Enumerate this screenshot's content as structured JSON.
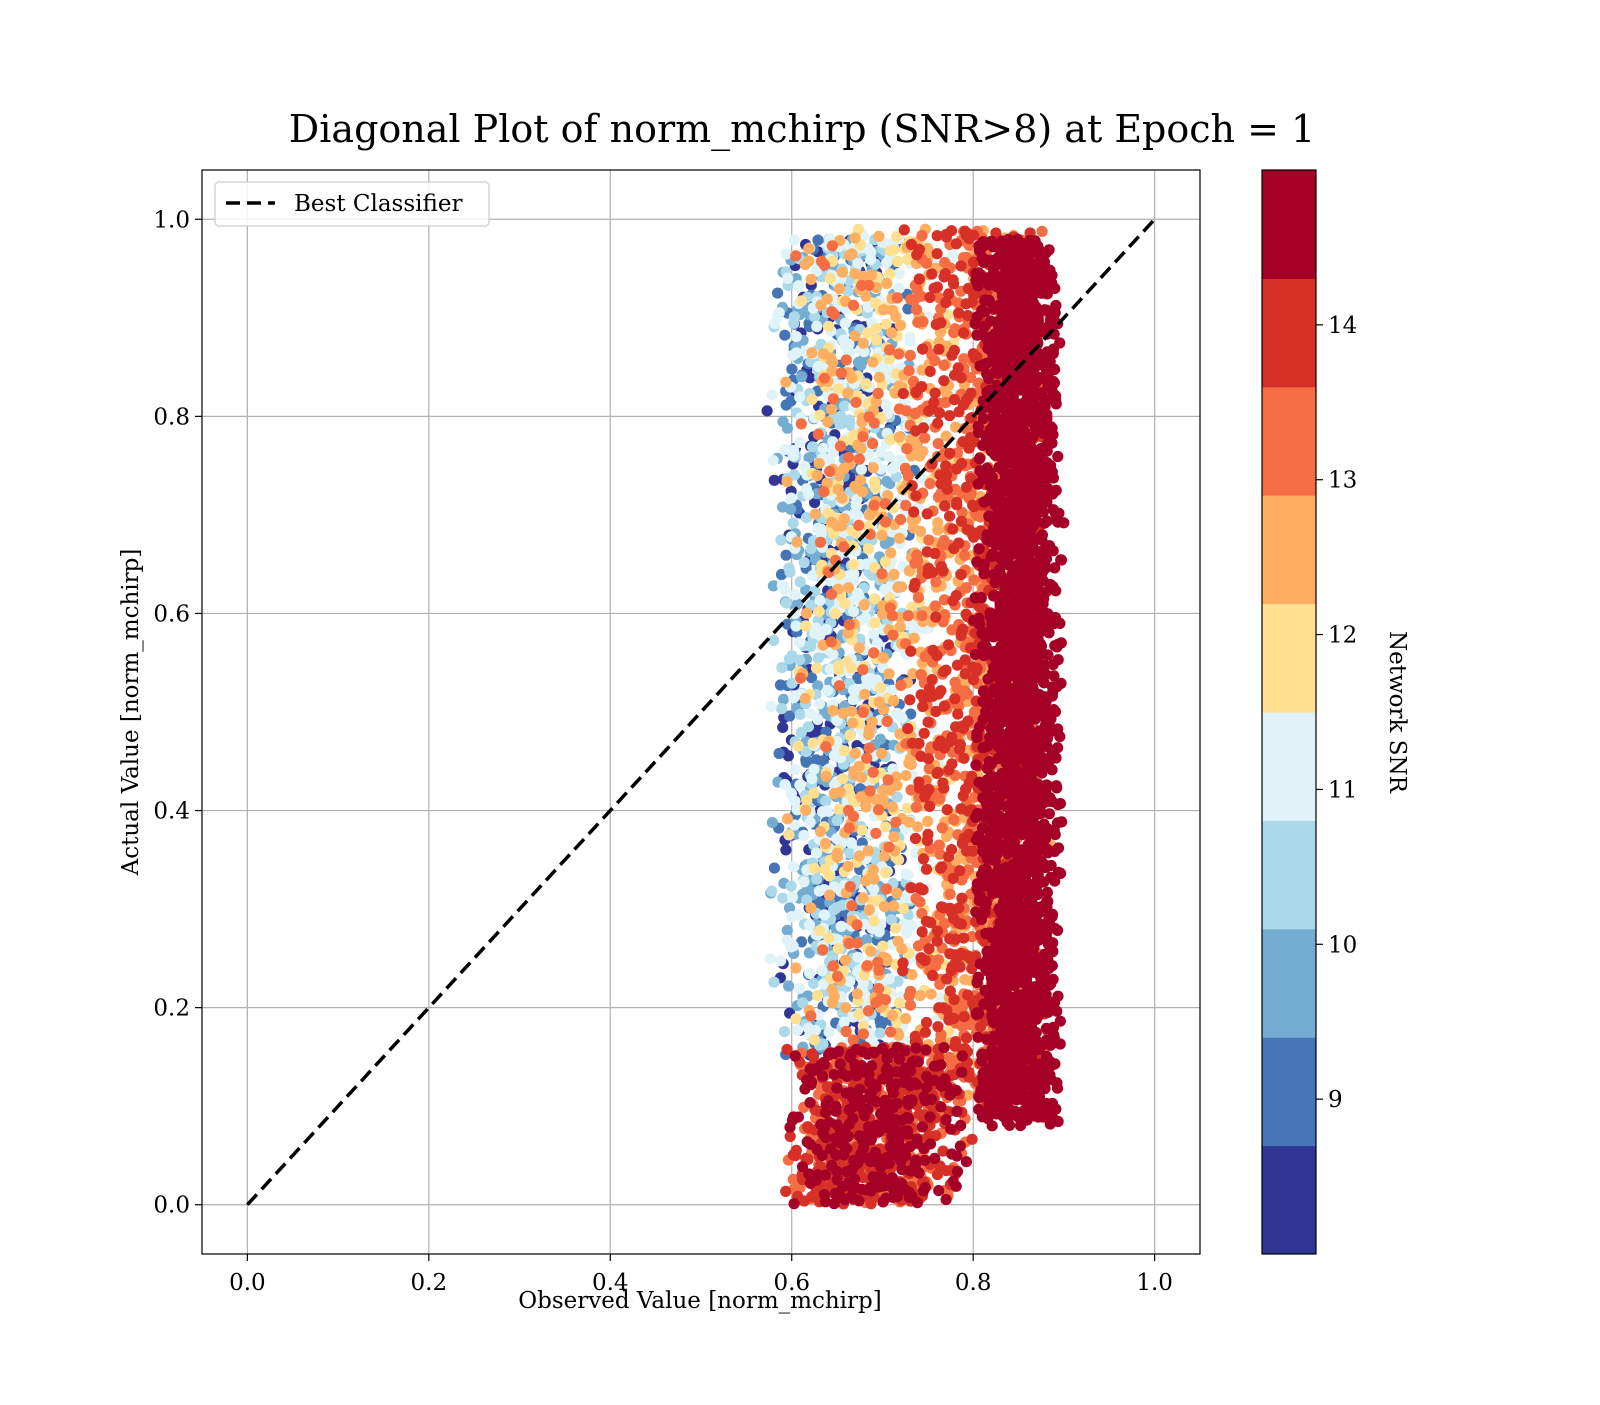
{
  "chart_data": {
    "type": "scatter",
    "title": "Diagonal Plot of norm_mchirp (SNR>8) at Epoch = 1",
    "xlabel": "Observed Value [norm_mchirp]",
    "ylabel": "Actual Value [norm_mchirp]",
    "xlim": [
      -0.05,
      1.05
    ],
    "ylim": [
      -0.05,
      1.05
    ],
    "xticks": [
      "0.0",
      "0.2",
      "0.4",
      "0.6",
      "0.8",
      "1.0"
    ],
    "yticks": [
      "0.0",
      "0.2",
      "0.4",
      "0.6",
      "0.8",
      "1.0"
    ],
    "grid": true,
    "legend": {
      "placement": "upper-left",
      "entries": [
        "Best Classifier"
      ]
    },
    "reference_line": {
      "name": "Best Classifier",
      "x": [
        0.0,
        1.0
      ],
      "y": [
        0.0,
        1.0
      ],
      "style": "dashed",
      "color": "#000000"
    },
    "colorbar": {
      "label": "Network SNR",
      "range": [
        8.0,
        15.0
      ],
      "ticks": [
        "9",
        "10",
        "11",
        "12",
        "13",
        "14"
      ],
      "tick_values": [
        9,
        10,
        11,
        12,
        13,
        14
      ],
      "bins": [
        {
          "from": 8.0,
          "to": 8.7,
          "color": "#313695"
        },
        {
          "from": 8.7,
          "to": 9.4,
          "color": "#4575b4"
        },
        {
          "from": 9.4,
          "to": 10.1,
          "color": "#74add1"
        },
        {
          "from": 10.1,
          "to": 10.8,
          "color": "#abd9e9"
        },
        {
          "from": 10.8,
          "to": 11.5,
          "color": "#e0f3f8"
        },
        {
          "from": 11.5,
          "to": 12.2,
          "color": "#fee090"
        },
        {
          "from": 12.2,
          "to": 12.9,
          "color": "#fdae61"
        },
        {
          "from": 12.9,
          "to": 13.6,
          "color": "#f46d43"
        },
        {
          "from": 13.6,
          "to": 14.3,
          "color": "#d73027"
        },
        {
          "from": 14.3,
          "to": 15.0,
          "color": "#a50026"
        }
      ]
    },
    "series": [
      {
        "color_by": "Network SNR",
        "point_clusters": [
          {
            "x_range": [
              0.57,
              0.74
            ],
            "y_range": [
              0.15,
              0.98
            ],
            "snr_range": [
              8.0,
              11.4
            ],
            "approx_count": 1400
          },
          {
            "x_range": [
              0.59,
              0.79
            ],
            "y_range": [
              0.15,
              0.99
            ],
            "snr_range": [
              10.8,
              13.2
            ],
            "approx_count": 900
          },
          {
            "x_range": [
              0.72,
              0.89
            ],
            "y_range": [
              0.1,
              0.99
            ],
            "snr_range": [
              12.5,
              14.3
            ],
            "approx_count": 1500
          },
          {
            "x_range": [
              0.8,
              0.9
            ],
            "y_range": [
              0.08,
              0.98
            ],
            "snr_range": [
              14.3,
              15.0
            ],
            "approx_count": 2600
          },
          {
            "x_range": [
              0.59,
              0.8
            ],
            "y_range": [
              0.0,
              0.16
            ],
            "snr_range": [
              13.0,
              15.0
            ],
            "approx_count": 900
          }
        ]
      }
    ]
  }
}
